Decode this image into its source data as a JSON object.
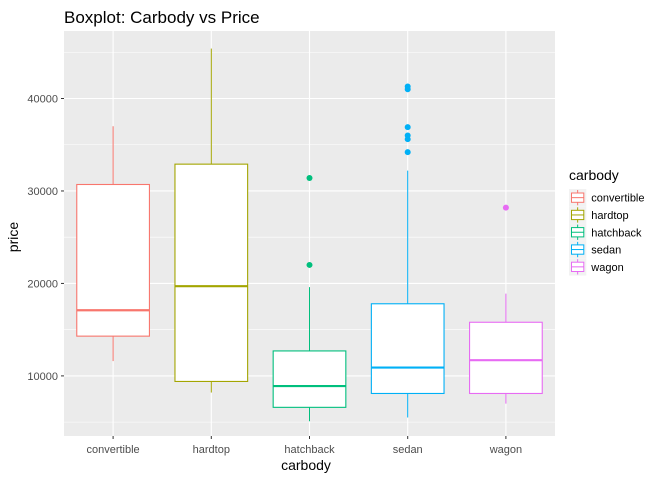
{
  "chart_data": {
    "type": "boxplot",
    "title": "Boxplot: Carbody vs Price",
    "xlabel": "carbody",
    "ylabel": "price",
    "ylim": [
      3500,
      47300
    ],
    "yticks": [
      10000,
      20000,
      30000,
      40000
    ],
    "ytick_labels": [
      "10000",
      "20000",
      "30000",
      "40000"
    ],
    "grid": true,
    "legend": {
      "title": "carbody",
      "position": "right"
    },
    "categories": [
      "convertible",
      "hardtop",
      "hatchback",
      "sedan",
      "wagon"
    ],
    "series": [
      {
        "name": "convertible",
        "color": "#F8766D",
        "min": 11600,
        "q1": 14300,
        "median": 17100,
        "q3": 30700,
        "max": 37000,
        "outliers": []
      },
      {
        "name": "hardtop",
        "color": "#A3A500",
        "min": 8200,
        "q1": 9400,
        "median": 19700,
        "q3": 32900,
        "max": 45400,
        "outliers": []
      },
      {
        "name": "hatchback",
        "color": "#00BF7D",
        "min": 5100,
        "q1": 6600,
        "median": 8900,
        "q3": 12700,
        "max": 19600,
        "outliers": [
          22000,
          31400
        ]
      },
      {
        "name": "sedan",
        "color": "#00B0F6",
        "min": 5500,
        "q1": 8100,
        "median": 10900,
        "q3": 17800,
        "max": 32200,
        "outliers": [
          34200,
          35600,
          36000,
          36900,
          41000,
          41300
        ]
      },
      {
        "name": "wagon",
        "color": "#E76BF3",
        "min": 7000,
        "q1": 8100,
        "median": 11700,
        "q3": 15800,
        "max": 18900,
        "outliers": [
          28200
        ]
      }
    ]
  }
}
